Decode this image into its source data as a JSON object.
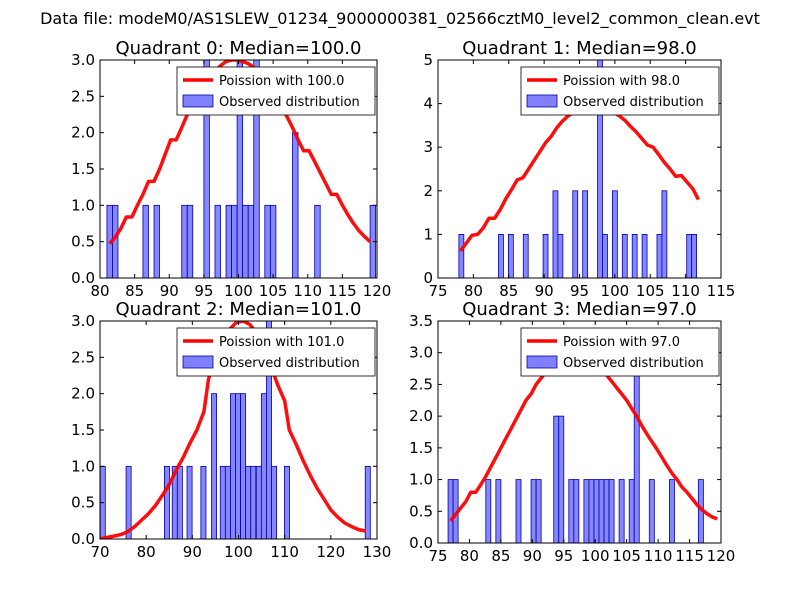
{
  "figure": {
    "suptitle": "Data file: modeM0/AS1SLEW_01234_9000000381_02566cztM0_level2_common_clean.evt"
  },
  "colors": {
    "curve": "#ff0000",
    "bars_fill": "#8080ff",
    "bars_edge": "#0000aa",
    "legend_border": "#000000"
  },
  "chart_data": [
    {
      "type": "bar",
      "title": "Quadrant 0: Median=100.0",
      "xlim": [
        80,
        120
      ],
      "ylim": [
        0,
        3.0
      ],
      "xticks": [
        80,
        85,
        90,
        95,
        100,
        105,
        110,
        115,
        120
      ],
      "yticks": [
        "0.0",
        "0.5",
        "1.0",
        "1.5",
        "2.0",
        "2.5",
        "3.0"
      ],
      "legend": {
        "curve_label": "Poission with 100.0",
        "bars_label": "Observed distribution",
        "loc": "upper right"
      },
      "bar_width": 0.8,
      "bars": [
        [
          81.4,
          1
        ],
        [
          82.2,
          1
        ],
        [
          86.6,
          1
        ],
        [
          88.2,
          1
        ],
        [
          92.2,
          1
        ],
        [
          93.0,
          1
        ],
        [
          95.4,
          3
        ],
        [
          97.0,
          1
        ],
        [
          98.6,
          1
        ],
        [
          99.4,
          1
        ],
        [
          100.2,
          3
        ],
        [
          101.0,
          1
        ],
        [
          101.8,
          1
        ],
        [
          102.6,
          3
        ],
        [
          104.2,
          1
        ],
        [
          105.0,
          1
        ],
        [
          108.2,
          2
        ],
        [
          111.4,
          1
        ],
        [
          119.4,
          1
        ]
      ],
      "curve": [
        [
          81.4,
          0.47
        ],
        [
          82.2,
          0.56
        ],
        [
          83.0,
          0.68
        ],
        [
          83.8,
          0.84
        ],
        [
          84.6,
          0.84
        ],
        [
          85.4,
          1.0
        ],
        [
          86.2,
          1.15
        ],
        [
          87.0,
          1.33
        ],
        [
          87.8,
          1.33
        ],
        [
          88.6,
          1.5
        ],
        [
          89.4,
          1.7
        ],
        [
          90.2,
          1.9
        ],
        [
          91.0,
          1.9
        ],
        [
          91.8,
          2.07
        ],
        [
          92.6,
          2.25
        ],
        [
          93.4,
          2.4
        ],
        [
          94.2,
          2.53
        ],
        [
          95.0,
          2.67
        ],
        [
          95.8,
          2.78
        ],
        [
          96.6,
          2.85
        ],
        [
          97.4,
          2.92
        ],
        [
          98.2,
          2.98
        ],
        [
          99.0,
          3.0
        ],
        [
          99.8,
          3.0
        ],
        [
          100.6,
          2.98
        ],
        [
          101.4,
          2.95
        ],
        [
          102.2,
          2.9
        ],
        [
          103.0,
          2.82
        ],
        [
          103.8,
          2.72
        ],
        [
          104.6,
          2.6
        ],
        [
          105.4,
          2.48
        ],
        [
          106.2,
          2.35
        ],
        [
          107.0,
          2.22
        ],
        [
          107.8,
          2.07
        ],
        [
          108.6,
          1.9
        ],
        [
          109.4,
          1.75
        ],
        [
          110.2,
          1.75
        ],
        [
          111.0,
          1.6
        ],
        [
          111.8,
          1.45
        ],
        [
          112.6,
          1.3
        ],
        [
          113.4,
          1.15
        ],
        [
          114.2,
          1.15
        ],
        [
          115.0,
          1.0
        ],
        [
          115.8,
          0.87
        ],
        [
          116.6,
          0.75
        ],
        [
          117.4,
          0.65
        ],
        [
          118.2,
          0.57
        ],
        [
          119.0,
          0.5
        ]
      ]
    },
    {
      "type": "bar",
      "title": "Quadrant 1: Median=98.0",
      "xlim": [
        75,
        115
      ],
      "ylim": [
        0,
        5
      ],
      "xticks": [
        75,
        80,
        85,
        90,
        95,
        100,
        105,
        110,
        115
      ],
      "yticks": [
        "0",
        "1",
        "2",
        "3",
        "4",
        "5"
      ],
      "legend": {
        "curve_label": "Poission with 98.0",
        "bars_label": "Observed distribution",
        "loc": "upper right"
      },
      "bar_width": 0.7,
      "bars": [
        [
          78.3,
          1
        ],
        [
          83.9,
          1
        ],
        [
          85.3,
          1
        ],
        [
          87.4,
          1
        ],
        [
          90.2,
          1
        ],
        [
          91.6,
          2
        ],
        [
          92.3,
          1
        ],
        [
          94.4,
          2
        ],
        [
          95.8,
          2
        ],
        [
          97.9,
          5
        ],
        [
          98.6,
          1
        ],
        [
          100.0,
          2
        ],
        [
          101.4,
          1
        ],
        [
          102.8,
          1
        ],
        [
          104.2,
          1
        ],
        [
          106.3,
          1
        ],
        [
          107.0,
          2
        ],
        [
          110.5,
          1
        ],
        [
          111.2,
          1
        ]
      ],
      "curve": [
        [
          78.2,
          0.62
        ],
        [
          79.0,
          0.8
        ],
        [
          79.8,
          0.98
        ],
        [
          80.6,
          1.0
        ],
        [
          81.4,
          1.15
        ],
        [
          82.2,
          1.37
        ],
        [
          83.0,
          1.37
        ],
        [
          83.8,
          1.57
        ],
        [
          84.6,
          1.82
        ],
        [
          85.4,
          2.03
        ],
        [
          86.2,
          2.25
        ],
        [
          87.0,
          2.3
        ],
        [
          87.8,
          2.5
        ],
        [
          88.6,
          2.7
        ],
        [
          89.4,
          2.9
        ],
        [
          90.2,
          3.1
        ],
        [
          91.0,
          3.25
        ],
        [
          91.8,
          3.45
        ],
        [
          92.6,
          3.6
        ],
        [
          93.4,
          3.72
        ],
        [
          94.2,
          3.8
        ],
        [
          95.0,
          3.88
        ],
        [
          95.8,
          3.95
        ],
        [
          96.6,
          3.95
        ],
        [
          97.4,
          4.0
        ],
        [
          98.2,
          3.97
        ],
        [
          99.0,
          3.9
        ],
        [
          99.8,
          3.8
        ],
        [
          100.6,
          3.72
        ],
        [
          101.4,
          3.62
        ],
        [
          102.2,
          3.48
        ],
        [
          103.0,
          3.35
        ],
        [
          103.8,
          3.2
        ],
        [
          104.6,
          3.05
        ],
        [
          105.4,
          3.0
        ],
        [
          106.2,
          2.83
        ],
        [
          107.0,
          2.65
        ],
        [
          107.8,
          2.5
        ],
        [
          108.6,
          2.33
        ],
        [
          109.4,
          2.35
        ],
        [
          110.2,
          2.2
        ],
        [
          111.0,
          2.05
        ],
        [
          111.8,
          1.8
        ]
      ]
    },
    {
      "type": "bar",
      "title": "Quadrant 2: Median=101.0",
      "xlim": [
        70,
        130
      ],
      "ylim": [
        0,
        3.0
      ],
      "xticks": [
        70,
        80,
        90,
        100,
        110,
        120,
        130
      ],
      "yticks": [
        "0.0",
        "0.5",
        "1.0",
        "1.5",
        "2.0",
        "2.5",
        "3.0"
      ],
      "legend": {
        "curve_label": "Poission with 101.0",
        "bars_label": "Observed distribution",
        "loc": "upper right"
      },
      "bar_width": 1.1,
      "bars": [
        [
          70.6,
          1
        ],
        [
          76.2,
          1
        ],
        [
          84.5,
          1
        ],
        [
          86.2,
          1
        ],
        [
          87.3,
          1
        ],
        [
          89.4,
          1
        ],
        [
          92.4,
          1
        ],
        [
          94.7,
          2
        ],
        [
          96.6,
          1
        ],
        [
          97.7,
          1
        ],
        [
          98.8,
          2
        ],
        [
          99.9,
          2
        ],
        [
          101.0,
          2
        ],
        [
          102.1,
          1
        ],
        [
          103.2,
          1
        ],
        [
          104.4,
          1
        ],
        [
          105.5,
          2
        ],
        [
          106.6,
          3
        ],
        [
          107.7,
          1
        ],
        [
          110.5,
          1
        ],
        [
          128.0,
          1
        ]
      ],
      "curve": [
        [
          70.0,
          0.0
        ],
        [
          71.5,
          0.02
        ],
        [
          73.0,
          0.04
        ],
        [
          74.5,
          0.06
        ],
        [
          76.0,
          0.1
        ],
        [
          77.5,
          0.17
        ],
        [
          79.0,
          0.26
        ],
        [
          80.5,
          0.35
        ],
        [
          82.0,
          0.46
        ],
        [
          83.5,
          0.6
        ],
        [
          85.0,
          0.75
        ],
        [
          86.5,
          0.95
        ],
        [
          88.0,
          1.12
        ],
        [
          89.5,
          1.32
        ],
        [
          91.0,
          1.5
        ],
        [
          92.5,
          1.75
        ],
        [
          93.5,
          2.2
        ],
        [
          95.0,
          2.5
        ],
        [
          96.5,
          2.72
        ],
        [
          98.0,
          2.88
        ],
        [
          99.5,
          2.98
        ],
        [
          101.0,
          3.0
        ],
        [
          102.5,
          2.95
        ],
        [
          104.0,
          2.82
        ],
        [
          105.5,
          2.62
        ],
        [
          107.0,
          2.38
        ],
        [
          108.5,
          2.12
        ],
        [
          110.0,
          1.9
        ],
        [
          111.0,
          1.5
        ],
        [
          112.5,
          1.3
        ],
        [
          114.0,
          1.08
        ],
        [
          115.5,
          0.88
        ],
        [
          117.0,
          0.7
        ],
        [
          118.5,
          0.55
        ],
        [
          120.0,
          0.4
        ],
        [
          121.5,
          0.3
        ],
        [
          123.0,
          0.22
        ],
        [
          124.5,
          0.17
        ],
        [
          126.0,
          0.13
        ],
        [
          127.5,
          0.11
        ]
      ]
    },
    {
      "type": "bar",
      "title": "Quadrant 3: Median=97.0",
      "xlim": [
        75,
        120
      ],
      "ylim": [
        0,
        3.5
      ],
      "xticks": [
        75,
        80,
        85,
        90,
        95,
        100,
        105,
        110,
        115,
        120
      ],
      "yticks": [
        "0.0",
        "0.5",
        "1.0",
        "1.5",
        "2.0",
        "2.5",
        "3.0",
        "3.5"
      ],
      "legend": {
        "curve_label": "Poission with 97.0",
        "bars_label": "Observed distribution",
        "loc": "upper right"
      },
      "bar_width": 0.8,
      "bars": [
        [
          77.0,
          1
        ],
        [
          77.8,
          1
        ],
        [
          83.0,
          1
        ],
        [
          84.6,
          1
        ],
        [
          87.8,
          1
        ],
        [
          90.2,
          1
        ],
        [
          91.0,
          1
        ],
        [
          93.8,
          2
        ],
        [
          94.6,
          2
        ],
        [
          96.2,
          1
        ],
        [
          97.0,
          1
        ],
        [
          98.6,
          1
        ],
        [
          99.4,
          1
        ],
        [
          100.2,
          1
        ],
        [
          101.0,
          1
        ],
        [
          101.8,
          1
        ],
        [
          102.6,
          1
        ],
        [
          104.2,
          1
        ],
        [
          105.8,
          1
        ],
        [
          106.6,
          3
        ],
        [
          109.0,
          1
        ],
        [
          112.2,
          1
        ],
        [
          116.8,
          1
        ]
      ],
      "curve": [
        [
          77.0,
          0.35
        ],
        [
          77.8,
          0.45
        ],
        [
          78.6,
          0.55
        ],
        [
          79.4,
          0.65
        ],
        [
          80.2,
          0.8
        ],
        [
          81.0,
          0.8
        ],
        [
          81.8,
          0.92
        ],
        [
          82.6,
          1.05
        ],
        [
          83.4,
          1.2
        ],
        [
          84.2,
          1.35
        ],
        [
          85.0,
          1.5
        ],
        [
          85.8,
          1.65
        ],
        [
          86.6,
          1.8
        ],
        [
          87.4,
          1.95
        ],
        [
          88.2,
          2.1
        ],
        [
          89.0,
          2.25
        ],
        [
          89.8,
          2.35
        ],
        [
          90.6,
          2.5
        ],
        [
          91.4,
          2.6
        ],
        [
          92.2,
          2.7
        ],
        [
          93.0,
          2.75
        ],
        [
          93.8,
          2.83
        ],
        [
          94.6,
          2.9
        ],
        [
          95.4,
          2.95
        ],
        [
          96.2,
          2.98
        ],
        [
          97.0,
          3.0
        ],
        [
          97.8,
          2.98
        ],
        [
          98.6,
          2.95
        ],
        [
          99.4,
          2.9
        ],
        [
          100.2,
          2.82
        ],
        [
          101.0,
          2.75
        ],
        [
          101.8,
          2.65
        ],
        [
          102.6,
          2.55
        ],
        [
          103.4,
          2.45
        ],
        [
          104.2,
          2.35
        ],
        [
          105.0,
          2.25
        ],
        [
          105.8,
          2.12
        ],
        [
          106.6,
          2.0
        ],
        [
          107.4,
          1.85
        ],
        [
          108.2,
          1.72
        ],
        [
          109.0,
          1.6
        ],
        [
          109.8,
          1.48
        ],
        [
          110.6,
          1.35
        ],
        [
          111.4,
          1.22
        ],
        [
          112.2,
          1.1
        ],
        [
          113.0,
          1.0
        ],
        [
          113.8,
          0.88
        ],
        [
          114.6,
          0.8
        ],
        [
          115.4,
          0.7
        ],
        [
          116.2,
          0.6
        ],
        [
          117.0,
          0.52
        ],
        [
          117.8,
          0.46
        ],
        [
          118.6,
          0.41
        ],
        [
          119.4,
          0.38
        ]
      ]
    }
  ]
}
